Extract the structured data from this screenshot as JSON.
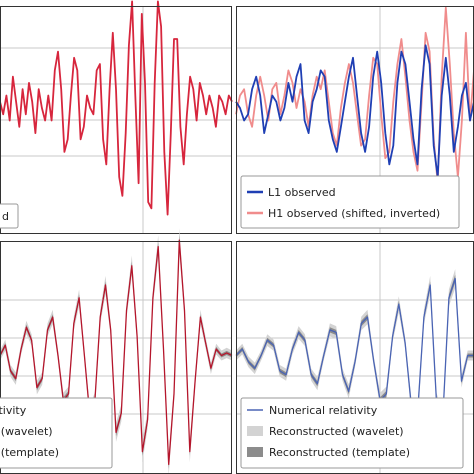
{
  "colors": {
    "h1": "#d7263d",
    "h1_light": "#f08c8c",
    "l1": "#1f3fb4",
    "nr_red": "#b5162c",
    "nr_blue": "#4a64b4",
    "band_wavelet": "#d3d3d3",
    "band_template": "#8c8c8c",
    "grid": "#c8c8c8",
    "frame": "#333333"
  },
  "chart_data": [
    {
      "type": "line",
      "panel": "top-left",
      "grid": true,
      "legend": {
        "placement": "bottom-left",
        "entries": [
          "d"
        ]
      },
      "series": [
        {
          "values": [
            0.05,
            -0.05,
            0.1,
            -0.1,
            0.25,
            0.05,
            -0.15,
            0.15,
            -0.05,
            0.2,
            0.05,
            -0.2,
            0.15,
            0.0,
            -0.1,
            0.1,
            -0.1,
            0.3,
            0.45,
            0.15,
            -0.35,
            -0.25,
            0.1,
            0.4,
            0.3,
            -0.25,
            -0.15,
            0.1,
            0.0,
            -0.05,
            0.3,
            0.35,
            -0.25,
            -0.45,
            0.15,
            0.6,
            0.15,
            -0.55,
            -0.7,
            -0.2,
            0.5,
            0.85,
            0.1,
            -0.6,
            0.75,
            0.2,
            -0.75,
            -0.8,
            0.2,
            0.85,
            0.65,
            -0.35,
            -0.85,
            -0.2,
            0.55,
            0.55,
            -0.15,
            -0.45,
            -0.05,
            0.25,
            0.15,
            -0.1,
            0.2,
            0.1,
            -0.05,
            0.1,
            0.0,
            -0.15,
            0.1,
            0.05,
            -0.05,
            0.1,
            0.05
          ]
        }
      ]
    },
    {
      "type": "line",
      "panel": "top-right",
      "grid": true,
      "legend": {
        "placement": "bottom-left",
        "entries": [
          "L1 observed",
          "H1 observed (shifted, inverted)"
        ]
      },
      "series": [
        {
          "name": "L1 observed",
          "values": [
            0.05,
            0.0,
            -0.1,
            -0.05,
            0.15,
            0.25,
            0.1,
            -0.2,
            -0.05,
            0.1,
            0.05,
            -0.1,
            0.0,
            0.2,
            0.05,
            0.25,
            0.35,
            -0.1,
            -0.2,
            0.05,
            0.15,
            0.3,
            0.25,
            -0.1,
            -0.25,
            -0.35,
            -0.15,
            0.05,
            0.25,
            0.4,
            0.1,
            -0.2,
            -0.35,
            -0.15,
            0.25,
            0.45,
            0.2,
            -0.2,
            -0.45,
            -0.3,
            0.2,
            0.45,
            0.35,
            0.05,
            -0.25,
            -0.45,
            0.15,
            0.5,
            0.35,
            -0.3,
            -0.55,
            0.1,
            0.4,
            0.1,
            -0.35,
            -0.15,
            0.1,
            0.2,
            -0.1,
            0.05
          ]
        },
        {
          "name": "H1 observed (shifted, inverted)",
          "values": [
            -0.05,
            0.1,
            0.15,
            -0.05,
            -0.15,
            0.1,
            0.25,
            0.1,
            -0.1,
            0.15,
            0.2,
            -0.05,
            0.1,
            0.3,
            0.2,
            0.0,
            0.15,
            0.05,
            -0.15,
            0.1,
            0.25,
            0.15,
            0.3,
            0.05,
            -0.2,
            -0.3,
            0.0,
            0.2,
            0.35,
            0.2,
            -0.05,
            -0.3,
            -0.25,
            0.1,
            0.4,
            0.35,
            -0.05,
            -0.4,
            -0.35,
            0.05,
            0.35,
            0.55,
            0.25,
            -0.1,
            -0.35,
            -0.5,
            0.05,
            0.6,
            0.45,
            -0.25,
            -0.6,
            0.25,
            0.8,
            0.35,
            -0.2,
            -0.55,
            -0.1,
            0.6,
            -0.1,
            0.3
          ]
        }
      ]
    },
    {
      "type": "line",
      "panel": "bottom-left",
      "grid": true,
      "legend": {
        "placement": "bottom-left",
        "entries": [
          "Numerical relativity",
          "Reconstructed (wavelet)",
          "Reconstructed (template)"
        ]
      },
      "series": [
        {
          "name": "Reconstructed (wavelet)",
          "style": "band"
        },
        {
          "name": "Reconstructed (template)",
          "style": "band"
        },
        {
          "name": "Numerical relativity",
          "values": [
            0.0,
            0.08,
            -0.12,
            -0.18,
            0.05,
            0.22,
            0.12,
            -0.25,
            -0.18,
            0.2,
            0.3,
            0.0,
            -0.35,
            -0.3,
            0.25,
            0.45,
            0.0,
            -0.45,
            -0.35,
            0.3,
            0.55,
            0.2,
            -0.6,
            -0.45,
            0.35,
            0.7,
            0.15,
            -0.75,
            -0.5,
            0.45,
            0.85,
            0.05,
            -0.85,
            -0.3,
            0.9,
            0.35,
            -0.75,
            -0.2,
            0.3,
            0.1,
            -0.1,
            0.05,
            0.0,
            0.02,
            0.0
          ]
        }
      ]
    },
    {
      "type": "line",
      "panel": "bottom-right",
      "grid": true,
      "legend": {
        "placement": "bottom-left",
        "entries": [
          "Numerical relativity",
          "Reconstructed (wavelet)",
          "Reconstructed (template)"
        ]
      },
      "series": [
        {
          "name": "Reconstructed (wavelet)",
          "style": "band"
        },
        {
          "name": "Reconstructed (template)",
          "style": "band"
        },
        {
          "name": "Numerical relativity",
          "values": [
            0.0,
            0.05,
            -0.05,
            -0.1,
            0.0,
            0.12,
            0.08,
            -0.12,
            -0.15,
            0.05,
            0.18,
            0.12,
            -0.15,
            -0.22,
            0.0,
            0.2,
            0.18,
            -0.15,
            -0.28,
            -0.05,
            0.25,
            0.3,
            -0.05,
            -0.35,
            -0.3,
            0.15,
            0.4,
            0.1,
            -0.4,
            -0.45,
            0.3,
            0.55,
            -0.35,
            -0.5,
            0.45,
            0.6,
            -0.2,
            0.0,
            0.0
          ]
        }
      ]
    }
  ]
}
